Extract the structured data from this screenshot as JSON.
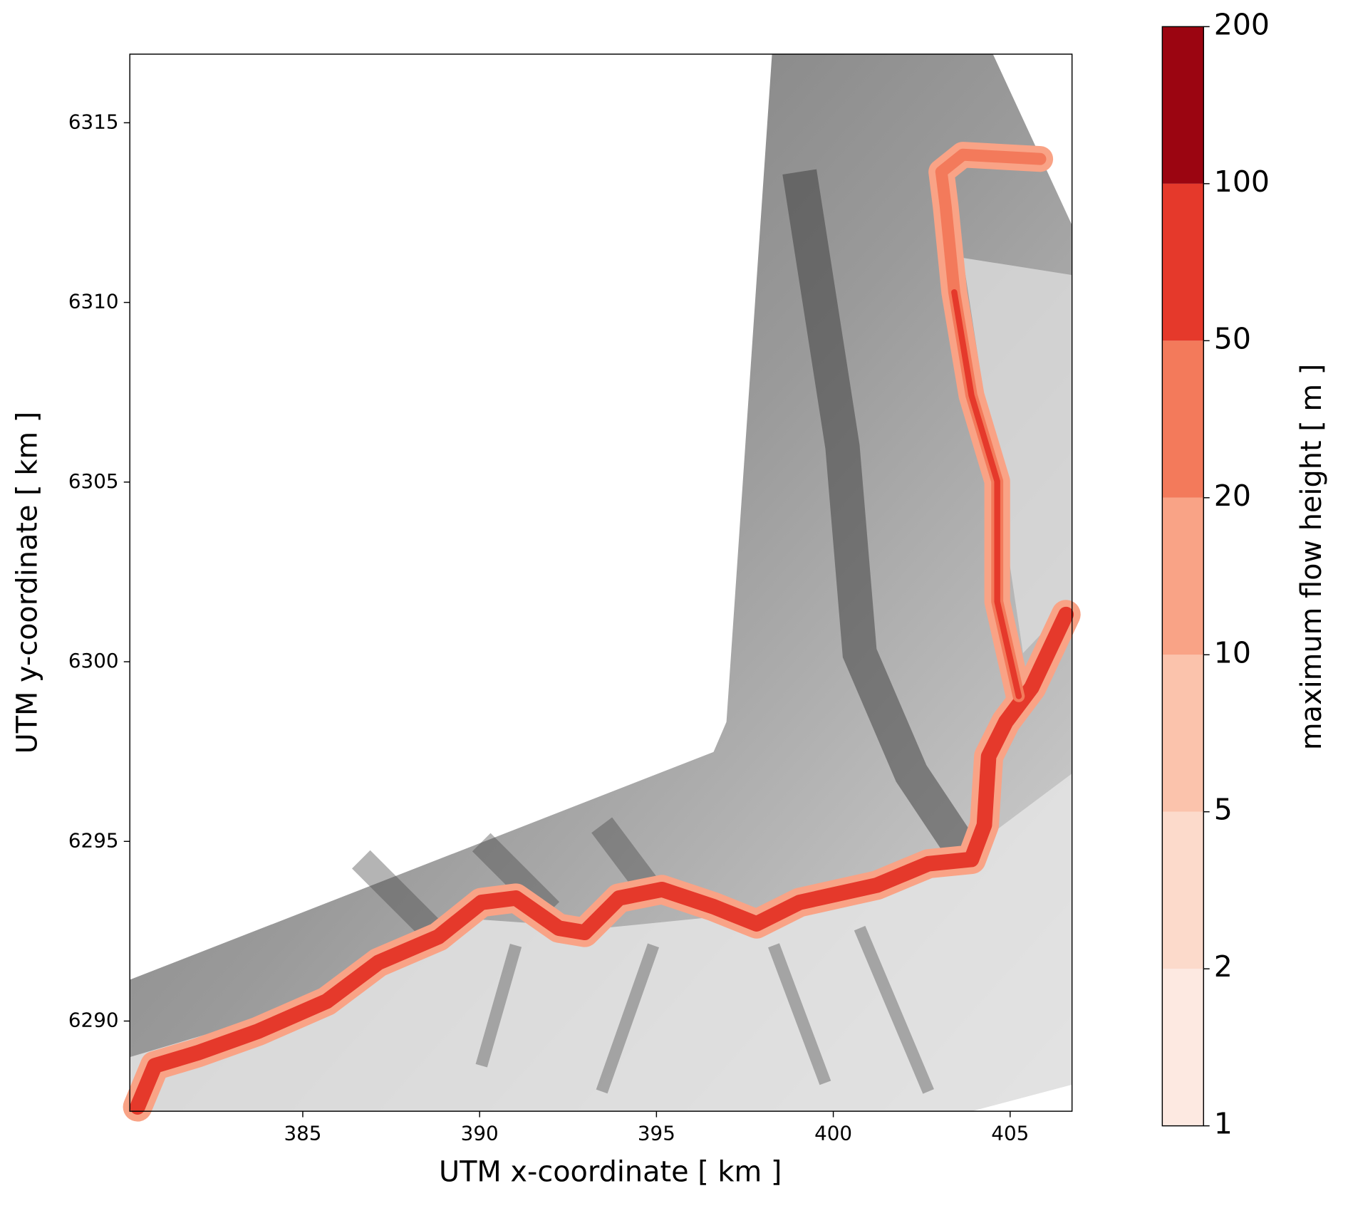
{
  "chart_data": {
    "type": "map",
    "xlabel": "UTM x-coordinate [ km ]",
    "ylabel": "UTM y-coordinate [ km ]",
    "xlim": [
      380.11,
      406.75
    ],
    "ylim": [
      6287.49,
      6316.91
    ],
    "xticks": [
      385,
      390,
      395,
      400,
      405
    ],
    "yticks": [
      6290,
      6295,
      6300,
      6305,
      6310,
      6315
    ],
    "colorbar": {
      "label": "maximum flow height [ m ]",
      "bounds": [
        1,
        2,
        5,
        10,
        20,
        50,
        100,
        200
      ],
      "colors": [
        "#fde9e1",
        "#fcdacb",
        "#fbc3ac",
        "#f9a386",
        "#f37a5b",
        "#e5392b",
        "#9b0511"
      ]
    }
  }
}
